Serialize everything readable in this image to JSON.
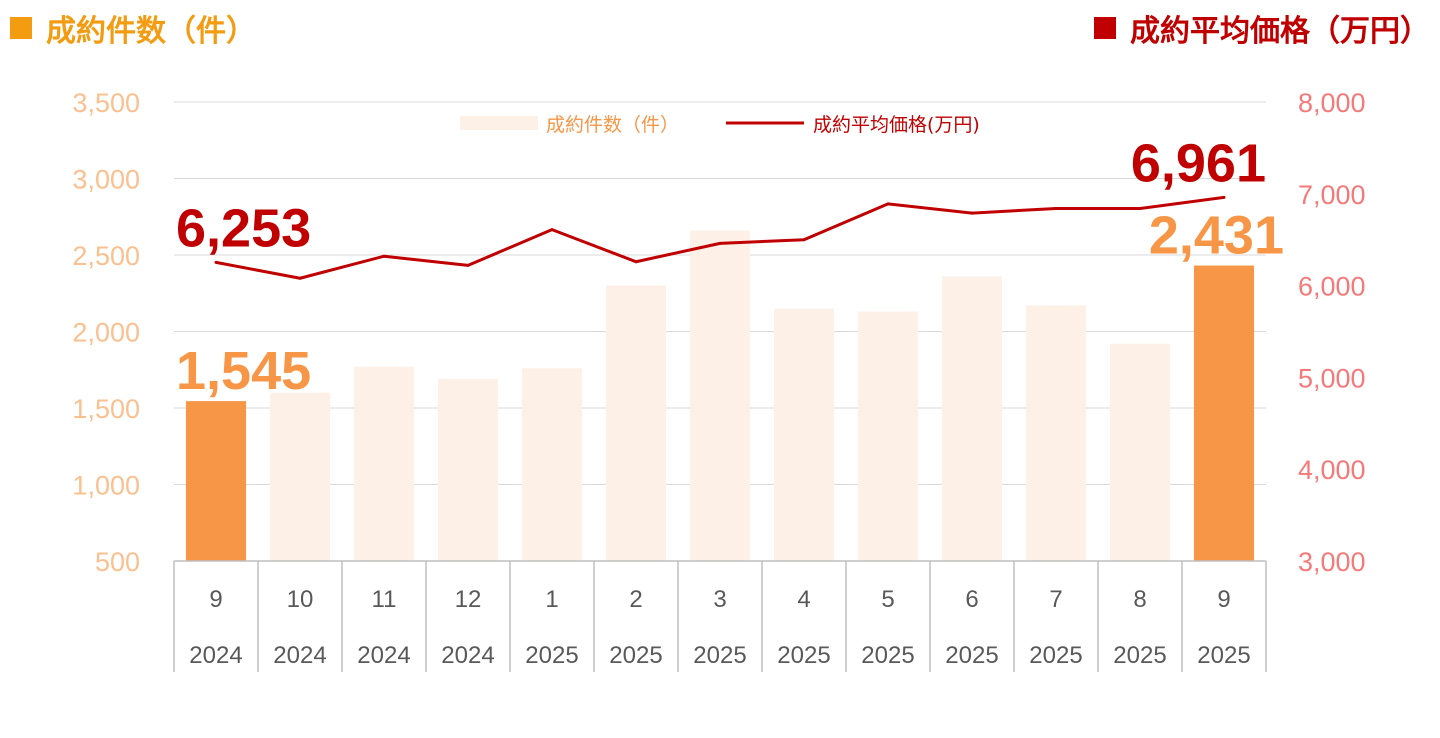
{
  "header": {
    "left_title": "成約件数（件）",
    "right_title": "成約平均価格（万円）"
  },
  "colors": {
    "bar_highlight": "#f79646",
    "bar_normal": "#fdf0e6",
    "line": "#c00000",
    "left_axis": "#fac090",
    "right_axis": "#f47a7a",
    "header_left": "#f39c12",
    "header_right": "#c00000"
  },
  "chart_data": {
    "type": "bar+line",
    "categories": [
      {
        "month": "9",
        "year": "2024"
      },
      {
        "month": "10",
        "year": "2024"
      },
      {
        "month": "11",
        "year": "2024"
      },
      {
        "month": "12",
        "year": "2024"
      },
      {
        "month": "1",
        "year": "2025"
      },
      {
        "month": "2",
        "year": "2025"
      },
      {
        "month": "3",
        "year": "2025"
      },
      {
        "month": "4",
        "year": "2025"
      },
      {
        "month": "5",
        "year": "2025"
      },
      {
        "month": "6",
        "year": "2025"
      },
      {
        "month": "7",
        "year": "2025"
      },
      {
        "month": "8",
        "year": "2025"
      },
      {
        "month": "9",
        "year": "2025"
      }
    ],
    "series": [
      {
        "name": "成約件数（件）",
        "type": "bar",
        "axis": "left",
        "values": [
          1545,
          1600,
          1770,
          1690,
          1760,
          2300,
          2660,
          2150,
          2130,
          2360,
          2170,
          1920,
          2431
        ],
        "highlight_indices": [
          0,
          12
        ]
      },
      {
        "name": "成約平均価格(万円)",
        "type": "line",
        "axis": "right",
        "values": [
          6253,
          6080,
          6320,
          6220,
          6610,
          6260,
          6460,
          6500,
          6890,
          6790,
          6840,
          6840,
          6961
        ]
      }
    ],
    "data_labels": [
      {
        "series": 0,
        "index": 0,
        "text": "1,545"
      },
      {
        "series": 0,
        "index": 12,
        "text": "2,431"
      },
      {
        "series": 1,
        "index": 0,
        "text": "6,253"
      },
      {
        "series": 1,
        "index": 12,
        "text": "6,961"
      }
    ],
    "left_axis": {
      "ylim": [
        500,
        3500
      ],
      "ticks": [
        500,
        1000,
        1500,
        2000,
        2500,
        3000,
        3500
      ],
      "tick_labels": [
        "500",
        "1,000",
        "1,500",
        "2,000",
        "2,500",
        "3,000",
        "3,500"
      ]
    },
    "right_axis": {
      "ylim": [
        3000,
        8000
      ],
      "ticks": [
        3000,
        4000,
        5000,
        6000,
        7000,
        8000
      ],
      "tick_labels": [
        "3,000",
        "4,000",
        "5,000",
        "6,000",
        "7,000",
        "8,000"
      ]
    },
    "grid": true,
    "legend": {
      "placement": "top-center",
      "entries": [
        "成約件数（件）",
        "成約平均価格(万円)"
      ]
    }
  }
}
